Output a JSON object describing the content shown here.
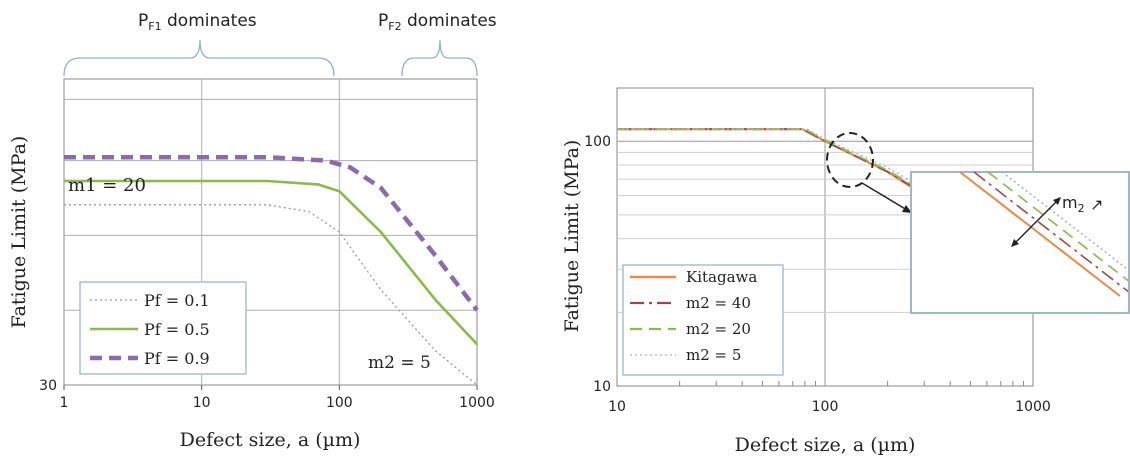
{
  "annotations": {
    "pf1_dominates": "P_F1 dominates",
    "pf2_dominates": "P_F2 dominates",
    "m1": "m1 = 20",
    "m2": "m2 = 5",
    "inset_m2": "m",
    "inset_m2_sub": "2",
    "inset_arrow": "↗"
  },
  "colors": {
    "pf01": "#8e9cb2",
    "pf05": "#8ab94c",
    "pf09": "#8b6bab",
    "kitagawa": "#e58b4a",
    "m2_40": "#9b4a4a",
    "m2_20": "#8ab94c",
    "m2_5": "#a8b2c0",
    "inset_border": "#9bb7cc"
  },
  "chart_data": [
    {
      "type": "line",
      "xlabel": "Defect size, a (µm)",
      "ylabel": "Fatigue Limit (MPa)",
      "x_scale": "log",
      "xlim": [
        1,
        1000
      ],
      "xticks": [
        "1",
        "10",
        "100",
        "1000"
      ],
      "yticks": [
        "30"
      ],
      "ylim": [
        30,
        120
      ],
      "grid": true,
      "legend_position": "bottom-left",
      "series": [
        {
          "name": "Pf = 0.1",
          "style": "dotted",
          "color": "#8e9cb2",
          "x": [
            1,
            30,
            60,
            100,
            200,
            500,
            1000
          ],
          "y": [
            83,
            83,
            81,
            75,
            58,
            40,
            30
          ]
        },
        {
          "name": "Pf = 0.5",
          "style": "solid",
          "color": "#8ab94c",
          "x": [
            1,
            30,
            70,
            100,
            200,
            500,
            1000
          ],
          "y": [
            90,
            90,
            89,
            87,
            75,
            55,
            42
          ]
        },
        {
          "name": "Pf = 0.9",
          "style": "dashed",
          "color": "#8b6bab",
          "x": [
            1,
            30,
            80,
            120,
            200,
            500,
            1000
          ],
          "y": [
            97,
            97,
            96,
            94,
            88,
            68,
            52
          ]
        }
      ]
    },
    {
      "type": "line",
      "xlabel": "Defect size, a (µm)",
      "ylabel": "Fatigue Limit (MPa)",
      "x_scale": "log",
      "y_scale": "log",
      "xlim": [
        10,
        1000
      ],
      "ylim": [
        10,
        165
      ],
      "xticks": [
        "10",
        "100",
        "1000"
      ],
      "yticks": [
        "10",
        "100"
      ],
      "grid": true,
      "legend_position": "bottom-left",
      "series": [
        {
          "name": "Kitagawa",
          "style": "solid",
          "color": "#e58b4a",
          "x": [
            10,
            78,
            100,
            200,
            300
          ],
          "y": [
            112,
            112,
            100,
            75,
            60
          ]
        },
        {
          "name": "m2 = 40",
          "style": "dashdot",
          "color": "#9b4a4a",
          "x": [
            10,
            78,
            100,
            200,
            300
          ],
          "y": [
            112,
            112,
            100,
            75,
            61
          ]
        },
        {
          "name": "m2 = 20",
          "style": "dashed",
          "color": "#8ab94c",
          "x": [
            10,
            80,
            100,
            200,
            300
          ],
          "y": [
            112,
            112,
            101,
            76,
            62
          ]
        },
        {
          "name": "m2 = 5",
          "style": "dotted",
          "color": "#a8b2c0",
          "x": [
            10,
            82,
            100,
            200,
            300
          ],
          "y": [
            112,
            112,
            102,
            78,
            64
          ]
        }
      ]
    }
  ]
}
